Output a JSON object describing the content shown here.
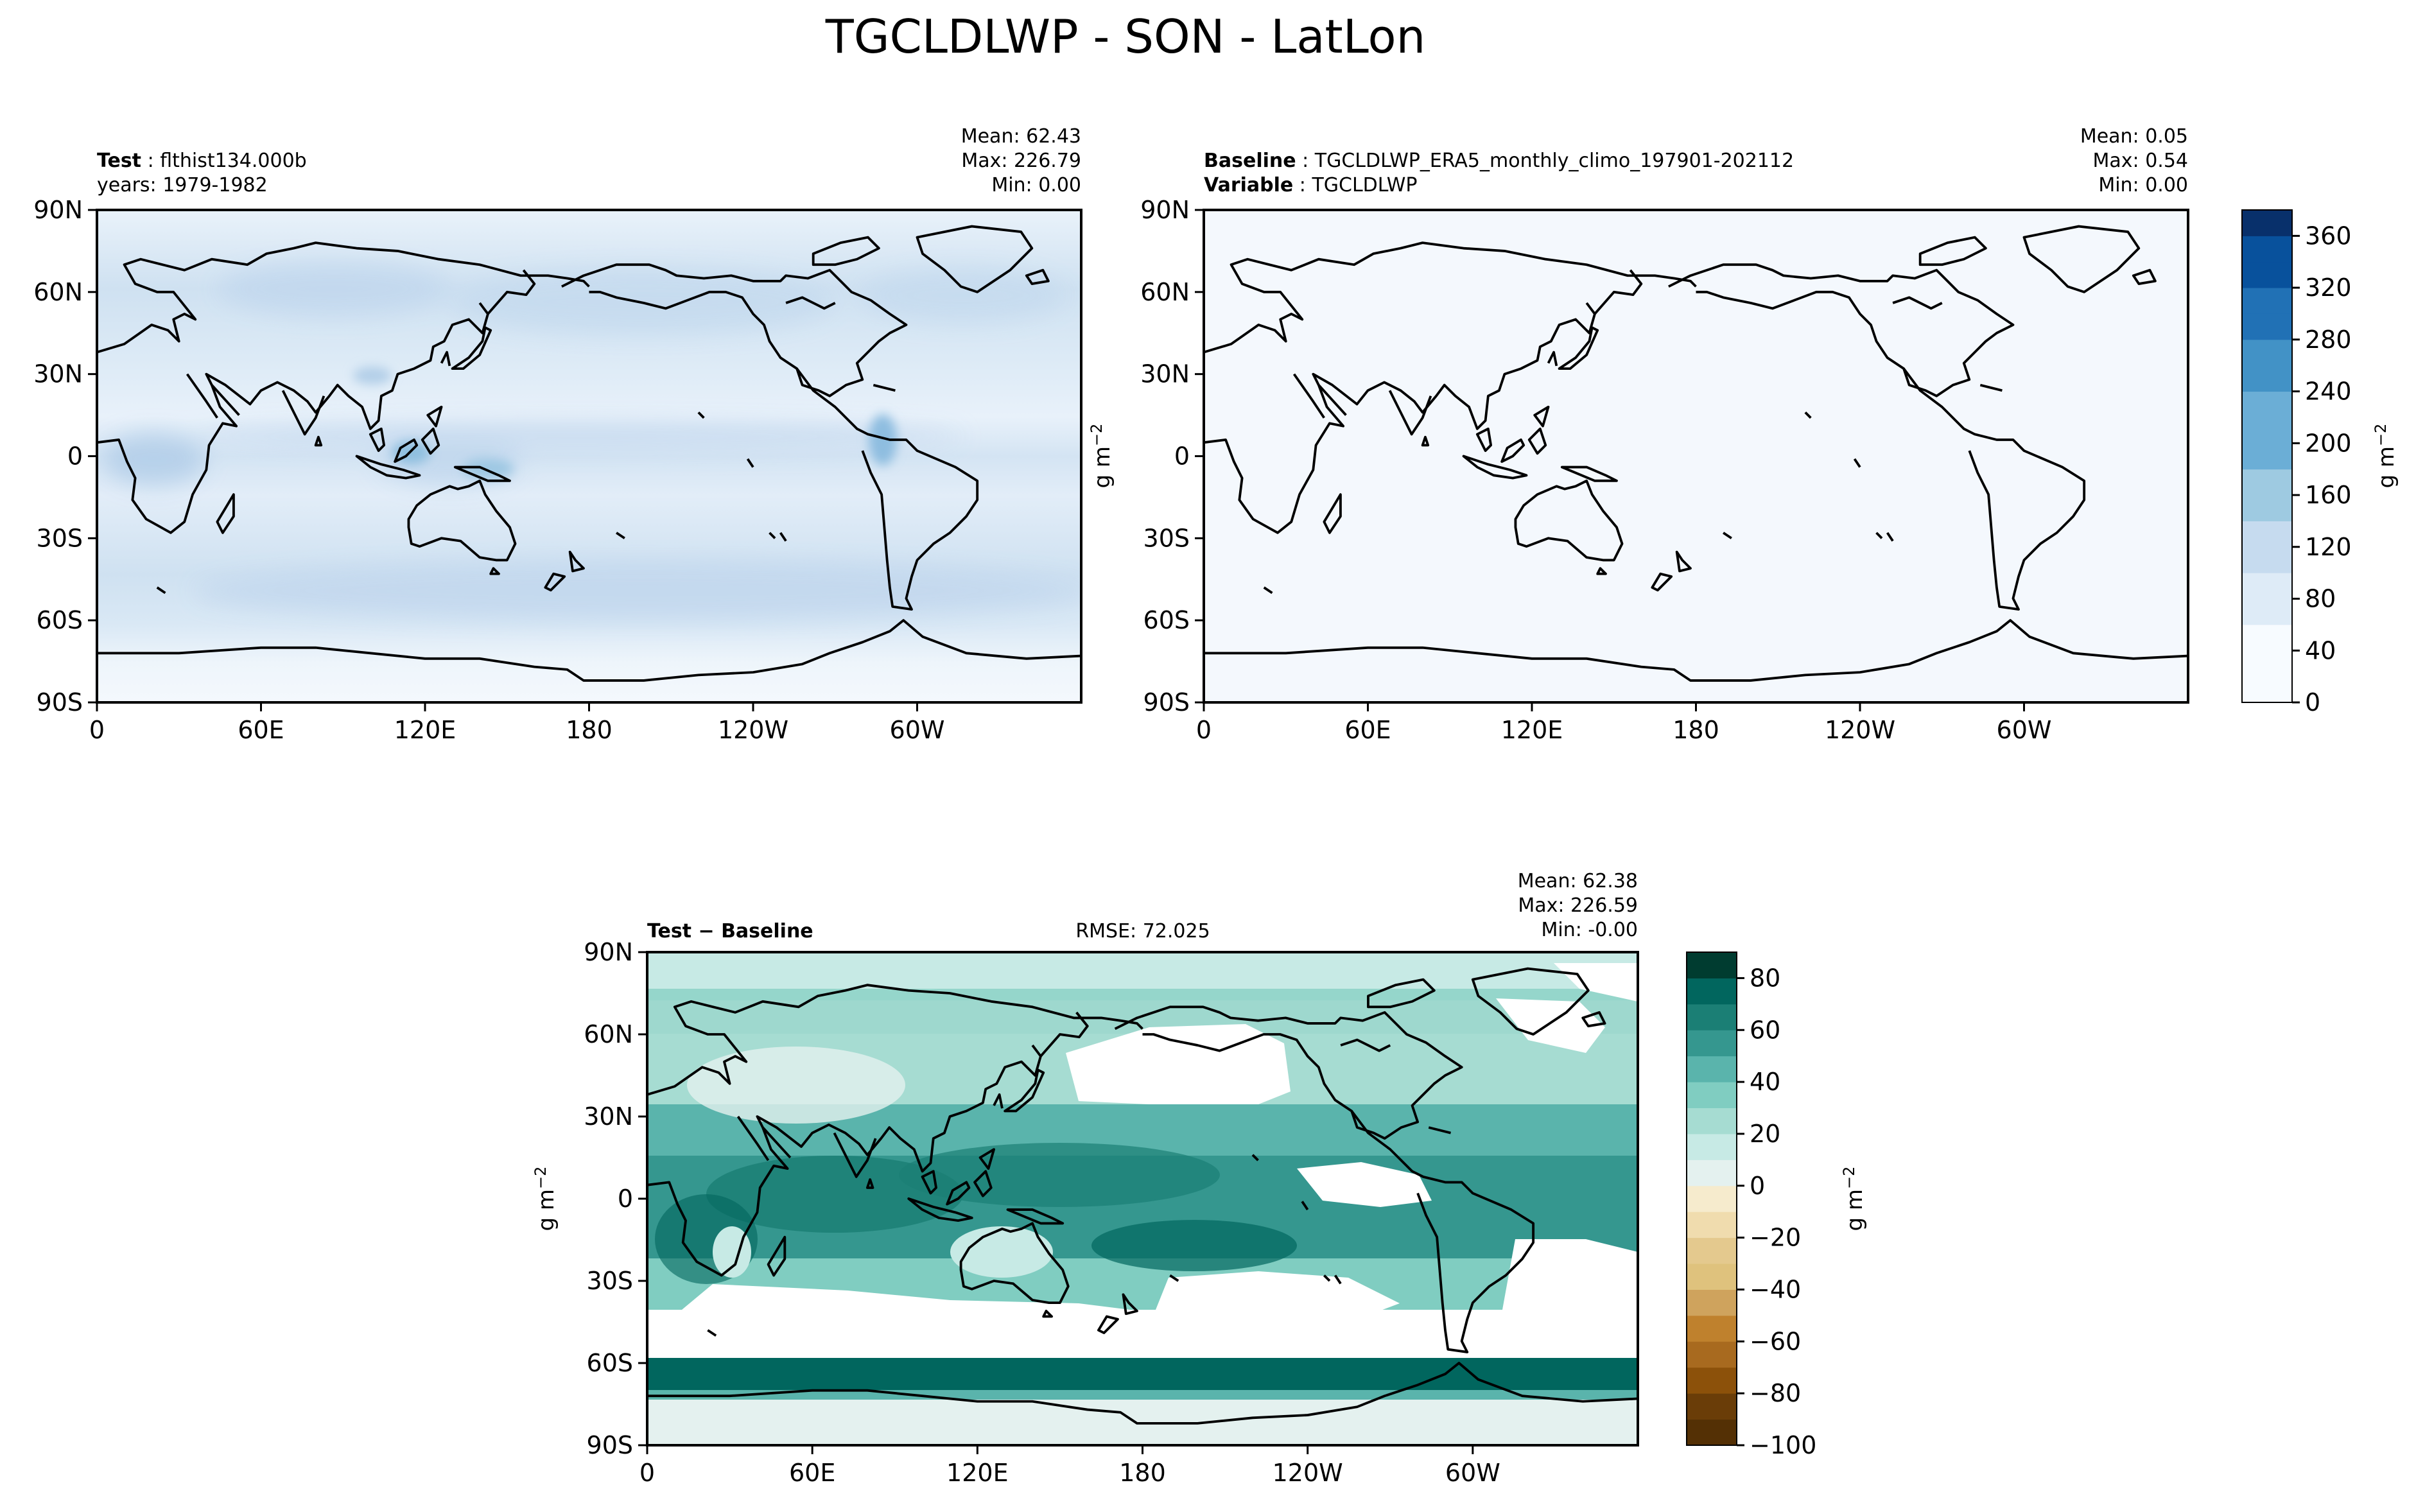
{
  "figure": {
    "title": "TGCLDLWP - SON - LatLon",
    "units_label": "g m",
    "units_exp": "−2"
  },
  "chart_data": [
    {
      "type": "heatmap",
      "panel": "test",
      "title_left_bold": "Test",
      "title_left": "flthist134.000b",
      "subtitle_left": "years: 1979-1982",
      "stats": {
        "Mean": "62.43",
        "Max": "226.79",
        "Min": "0.00"
      },
      "xlabel": "",
      "ylabel": "",
      "x_ticks": [
        "0",
        "60E",
        "120E",
        "180",
        "120W",
        "60W"
      ],
      "y_ticks": [
        "90N",
        "60N",
        "30N",
        "0",
        "30S",
        "60S",
        "90S"
      ],
      "colormap": "Blues",
      "field_summary": "cloud liquid water path, mostly 20–80 g m-2, higher in storm tracks, ITCZ and maritime continent"
    },
    {
      "type": "heatmap",
      "panel": "baseline",
      "title_left_bold": "Baseline",
      "title_left": "TGCLDLWP_ERA5_monthly_climo_197901-202112",
      "subtitle_left_bold": "Variable",
      "subtitle_left": "TGCLDLWP",
      "stats": {
        "Mean": "0.05",
        "Max": "0.54",
        "Min": "0.00"
      },
      "xlabel": "",
      "ylabel": "g m-2",
      "x_ticks": [
        "0",
        "60E",
        "120E",
        "180",
        "120W",
        "60W"
      ],
      "y_ticks": [
        "90N",
        "60N",
        "30N",
        "0",
        "30S",
        "60S",
        "90S"
      ],
      "colormap": "Blues",
      "colorbar": {
        "ticks": [
          "0",
          "40",
          "80",
          "120",
          "160",
          "200",
          "240",
          "280",
          "320",
          "360"
        ],
        "range": [
          0,
          380
        ],
        "label": "g m-2"
      }
    },
    {
      "type": "heatmap",
      "panel": "difference",
      "title_left_bold": "Test",
      "title_left_rest": "Baseline",
      "rmse": "RMSE: 72.025",
      "stats": {
        "Mean": "62.38",
        "Max": "226.59",
        "Min": "-0.00"
      },
      "xlabel": "",
      "ylabel": "g m-2",
      "x_ticks": [
        "0",
        "60E",
        "120E",
        "180",
        "120W",
        "60W"
      ],
      "y_ticks": [
        "90N",
        "60N",
        "30N",
        "0",
        "30S",
        "60S",
        "90S"
      ],
      "colormap": "BrBG",
      "colorbar": {
        "ticks": [
          "80",
          "60",
          "40",
          "20",
          "0",
          "−20",
          "−40",
          "−60",
          "−80",
          "−100"
        ],
        "range": [
          -100,
          90
        ],
        "label": "g m-2"
      }
    }
  ],
  "colors": {
    "blues": [
      "#f7fbff",
      "#deebf7",
      "#c6dbef",
      "#9ecae1",
      "#6baed6",
      "#4292c6",
      "#2171b5",
      "#08519c",
      "#08306b"
    ],
    "brbg_pos": [
      "#e4f1ef",
      "#c7eae5",
      "#a6dcd2",
      "#80cdc1",
      "#5ab4ac",
      "#35978f",
      "#1b7f75",
      "#01665e",
      "#003c30"
    ],
    "brbg_neg": [
      "#f6ebcd",
      "#f0dcae",
      "#e4c98e",
      "#dfc27d",
      "#cfa35d",
      "#bf812d",
      "#a86a1f",
      "#8c510a",
      "#6a3d08",
      "#543005"
    ]
  }
}
